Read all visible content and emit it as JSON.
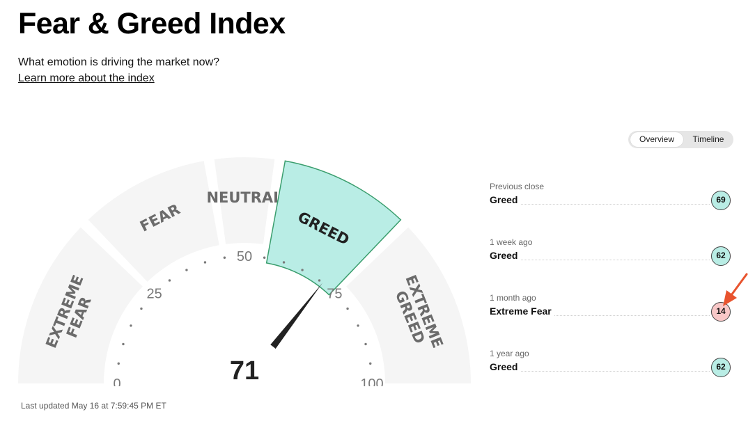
{
  "header": {
    "title": "Fear & Greed Index",
    "subtitle": "What emotion is driving the market now?",
    "learn_more": "Learn more about the index"
  },
  "view_toggle": {
    "options": [
      "Overview",
      "Timeline"
    ],
    "selected": "Overview"
  },
  "gauge": {
    "value": 71,
    "current_zone": "GREED",
    "scale_labels": [
      "0",
      "25",
      "50",
      "75",
      "100"
    ],
    "zones": [
      {
        "label_lines": [
          "EXTREME",
          "FEAR"
        ],
        "from": 0,
        "to": 25
      },
      {
        "label_lines": [
          "FEAR"
        ],
        "from": 25,
        "to": 45
      },
      {
        "label_lines": [
          "NEUTRAL"
        ],
        "from": 45,
        "to": 55
      },
      {
        "label_lines": [
          "GREED"
        ],
        "from": 55,
        "to": 75
      },
      {
        "label_lines": [
          "EXTREME",
          "GREED"
        ],
        "from": 75,
        "to": 100
      }
    ],
    "colors": {
      "zone_fill": "#f5f5f5",
      "active_fill": "#b9ede5",
      "active_stroke": "#3b9e6e",
      "zone_text": "#6b6b6b",
      "active_text": "#222222",
      "needle": "#222222"
    }
  },
  "last_updated": "Last updated May 16 at 7:59:45 PM ET",
  "history": [
    {
      "label": "Previous close",
      "rating": "Greed",
      "value": "69",
      "color": "#b9ede5"
    },
    {
      "label": "1 week ago",
      "rating": "Greed",
      "value": "62",
      "color": "#b9ede5"
    },
    {
      "label": "1 month ago",
      "rating": "Extreme Fear",
      "value": "14",
      "color": "#f8c7c7"
    },
    {
      "label": "1 year ago",
      "rating": "Greed",
      "value": "62",
      "color": "#b9ede5"
    }
  ],
  "annotation": {
    "icon": "arrow-icon",
    "color": "#e8532e"
  }
}
